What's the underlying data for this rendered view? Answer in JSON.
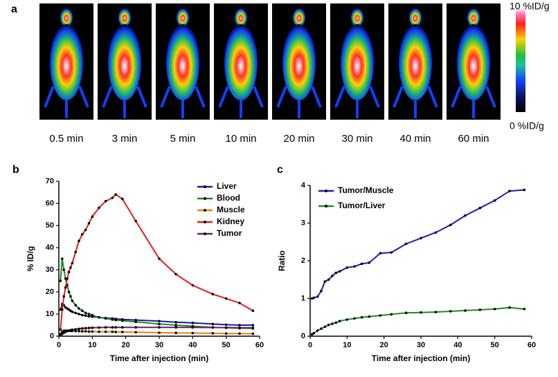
{
  "image_panel": {
    "label": "a",
    "times": [
      "0.5 min",
      "3 min",
      "5 min",
      "10 min",
      "20 min",
      "30 min",
      "40 min",
      "60 min"
    ],
    "colorbar": {
      "max_label": "10 %ID/g",
      "min_label": "0 %ID/g"
    }
  },
  "chart_data": [
    {
      "type": "line",
      "panel": "b",
      "x_label": "Time after injection (min)",
      "y_label": "% ID/g",
      "x": [
        0.5,
        1,
        1.5,
        2,
        2.5,
        3,
        3.5,
        4,
        5,
        6,
        7,
        8,
        9,
        10,
        12,
        14,
        16,
        17,
        19,
        23,
        30,
        35,
        40,
        46,
        50,
        54,
        58
      ],
      "series": [
        {
          "name": "Liver",
          "color": "#1a1aa6",
          "values": [
            12,
            14.5,
            14,
            13,
            12.5,
            12,
            11.5,
            11,
            10.5,
            10,
            9.5,
            9.3,
            9,
            8.8,
            8.5,
            8.2,
            8,
            7.8,
            7.6,
            7.3,
            6.8,
            6.3,
            6,
            5.5,
            5.2,
            5,
            5
          ]
        },
        {
          "name": "Blood",
          "color": "#1e8a1e",
          "values": [
            25,
            35,
            30,
            26,
            23,
            20,
            18,
            16,
            14,
            12.5,
            11.5,
            10.5,
            10,
            9.5,
            8.5,
            8,
            7.5,
            7.3,
            7,
            6.5,
            5.5,
            5,
            4.5,
            4,
            3.8,
            3.6,
            3.5
          ]
        },
        {
          "name": "Muscle",
          "color": "#f07c00",
          "values": [
            1,
            2,
            2.5,
            2.5,
            2.5,
            2.5,
            2.4,
            2.4,
            2.3,
            2.3,
            2.2,
            2.2,
            2.1,
            2.1,
            2,
            2,
            2,
            1.9,
            1.9,
            1.8,
            1.6,
            1.5,
            1.4,
            1.3,
            1.2,
            1.2,
            1.1
          ]
        },
        {
          "name": "Kidney",
          "color": "#e41a1c",
          "values": [
            3,
            12,
            18,
            22,
            26,
            29,
            31,
            33,
            38,
            43,
            46,
            48,
            51,
            54,
            58,
            61,
            62.5,
            64,
            62,
            52,
            35,
            28,
            23,
            19,
            17,
            15,
            11.5
          ]
        },
        {
          "name": "Tumor",
          "color": "#6a1a6a",
          "values": [
            0.5,
            1,
            1.5,
            2,
            2.3,
            2.5,
            2.7,
            2.9,
            3.1,
            3.3,
            3.5,
            3.6,
            3.7,
            3.8,
            3.9,
            4,
            4,
            4,
            4,
            4,
            4,
            4,
            4,
            3.9,
            3.9,
            3.8,
            3.8
          ]
        }
      ],
      "xlim": [
        0,
        60
      ],
      "xticks": [
        0,
        10,
        20,
        30,
        40,
        50,
        60
      ],
      "ylim": [
        0,
        70
      ],
      "yticks": [
        0,
        10,
        20,
        30,
        40,
        50,
        60,
        70
      ],
      "legend": "upper right"
    },
    {
      "type": "line",
      "panel": "c",
      "x_label": "Time after injection (min)",
      "y_label": "Ratio",
      "x": [
        0.5,
        1,
        2,
        3,
        4,
        5,
        6,
        7,
        8,
        10,
        12,
        14,
        16,
        19,
        22,
        26,
        30,
        34,
        38,
        42,
        46,
        50,
        54,
        58
      ],
      "series": [
        {
          "name": "Tumor/Muscle",
          "color": "#1a1ab8",
          "values": [
            1.0,
            1.02,
            1.05,
            1.2,
            1.45,
            1.5,
            1.6,
            1.68,
            1.72,
            1.82,
            1.85,
            1.92,
            1.95,
            2.2,
            2.22,
            2.45,
            2.6,
            2.75,
            2.95,
            3.2,
            3.4,
            3.6,
            3.85,
            3.88
          ]
        },
        {
          "name": "Tumor/Liver",
          "color": "#1e8a1e",
          "values": [
            0.05,
            0.08,
            0.15,
            0.2,
            0.25,
            0.3,
            0.33,
            0.36,
            0.4,
            0.44,
            0.47,
            0.5,
            0.52,
            0.55,
            0.58,
            0.62,
            0.63,
            0.64,
            0.66,
            0.68,
            0.7,
            0.72,
            0.76,
            0.72
          ]
        }
      ],
      "xlim": [
        0,
        60
      ],
      "xticks": [
        0,
        10,
        20,
        30,
        40,
        50,
        60
      ],
      "ylim": [
        0,
        4
      ],
      "yticks": [
        0,
        1,
        2,
        3,
        4
      ],
      "legend": "upper left"
    }
  ]
}
